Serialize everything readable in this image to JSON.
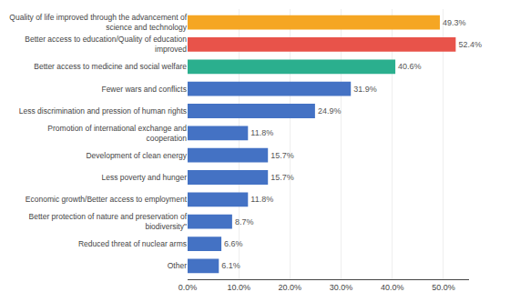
{
  "chart_data": {
    "type": "bar",
    "orientation": "horizontal",
    "categories": [
      "Other",
      "Reduced threat of nuclear arms",
      "Better protection of nature and preservation of\nbiodiversity\"",
      "Economic growth/Better access to employment",
      "Less poverty and hunger",
      "Development of clean energy",
      "Promotion of international exchange and\ncooperation",
      "Less discrimination and pression of human rights",
      "Fewer wars and conflicts",
      "Better access to medicine and social welfare",
      "Better access to education/Quality of education\nimproved",
      "Quality of life improved through the advancement of\nscience and technology"
    ],
    "values": [
      6.1,
      6.6,
      8.7,
      11.8,
      15.7,
      15.7,
      11.8,
      24.9,
      31.9,
      40.6,
      52.4,
      49.3
    ],
    "value_labels": [
      "6.1%",
      "6.6%",
      "8.7%",
      "11.8%",
      "15.7%",
      "15.7%",
      "11.8%",
      "24.9%",
      "31.9%",
      "40.6%",
      "52.4%",
      "49.3%"
    ],
    "colors": [
      "#4472C4",
      "#4472C4",
      "#4472C4",
      "#4472C4",
      "#4472C4",
      "#4472C4",
      "#4472C4",
      "#4472C4",
      "#4472C4",
      "#2BAF8E",
      "#E8534A",
      "#F5A623"
    ],
    "data_labels": true,
    "xlim": [
      0,
      55
    ],
    "xticks": [
      {
        "value": 0,
        "label": "0.0%"
      },
      {
        "value": 10,
        "label": "10.0%"
      },
      {
        "value": 20,
        "label": "20.0%"
      },
      {
        "value": 30,
        "label": "30.0%"
      },
      {
        "value": 40,
        "label": "40.0%"
      },
      {
        "value": 50,
        "label": "50.0%"
      }
    ],
    "grid": true
  }
}
